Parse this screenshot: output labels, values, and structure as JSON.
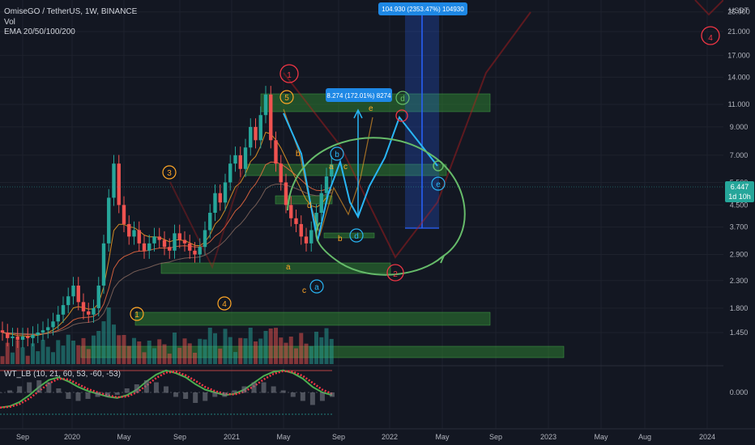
{
  "legend": {
    "symbol": "OmiseGO / TetherUS, 1W, BINANCE",
    "vol": "Vol",
    "ema": "EMA 20/50/100/200",
    "oscillator": "WT_LB (10, 21, 60, 53, -60, -53)"
  },
  "price_axis": {
    "currency": "USDT",
    "last_price": "6.447",
    "countdown": "1d 10h"
  },
  "annotations": {
    "measure_small": "8.274 (172.01%) 8274",
    "measure_big": "104.930 (2353.47%) 104930"
  },
  "colors": {
    "background": "#131722",
    "up": "#26a69a",
    "down": "#ef5350",
    "zone": "#2e7d32",
    "projection": "#29b6f6",
    "circle": "#66bb6a",
    "wave_orange": "#ffa726",
    "wave_red": "#f23645",
    "measure": "#2962ff"
  },
  "chart_data": {
    "type": "candlestick",
    "y_scale": "log",
    "x_tick_labels": [
      "Sep",
      "2020",
      "May",
      "Sep",
      "2021",
      "May",
      "Sep",
      "2022",
      "May",
      "Sep",
      "2023",
      "May",
      "Aug",
      "2024"
    ],
    "y_tick_labels": [
      "25.000",
      "21.000",
      "17.000",
      "14.000",
      "11.000",
      "9.000",
      "7.000",
      "5.500",
      "4.500",
      "3.700",
      "2.900",
      "2.300",
      "1.800",
      "1.450",
      "0.000"
    ],
    "osc_tick_label": "0.000",
    "price_series": {
      "name": "OMG/USDT weekly close (approx.)",
      "values": [
        1.45,
        1.38,
        1.4,
        1.36,
        1.4,
        1.38,
        1.42,
        1.45,
        1.48,
        1.52,
        1.6,
        1.7,
        1.85,
        2.0,
        2.2,
        1.9,
        1.75,
        1.7,
        1.8,
        2.2,
        3.2,
        4.8,
        6.5,
        4.5,
        3.8,
        3.4,
        3.6,
        3.2,
        3.0,
        3.2,
        3.4,
        3.3,
        3.1,
        3.0,
        3.5,
        3.3,
        3.2,
        3.0,
        2.9,
        3.1,
        3.6,
        4.2,
        5.0,
        4.6,
        5.5,
        6.5,
        7.0,
        6.2,
        7.5,
        9.0,
        8.0,
        10.0,
        12.0,
        8.0,
        6.5,
        5.5,
        4.5,
        4.0,
        3.8,
        3.4,
        3.2,
        3.6,
        4.2,
        5.0,
        5.8,
        6.45
      ]
    },
    "levels": {
      "three": 6.45,
      "four": 2.55,
      "five": 13.0,
      "wave_a": 2.95,
      "wave_b": 4.3,
      "wave_c": 8.1,
      "wave_d": 13.0,
      "wave_e": 6.9,
      "two": 2.9
    },
    "wave_labels": {
      "impulse": [
        "1",
        "3",
        "4",
        "5"
      ],
      "higher_degree": [
        "1",
        "2",
        "4"
      ],
      "abc": [
        "a",
        "b",
        "c",
        "a",
        "b",
        "c",
        "d",
        "e"
      ]
    },
    "oscillator": {
      "name": "WT_LB",
      "params": "10, 21, 60, 53, -60, -53",
      "values": [
        -55,
        -50,
        -35,
        -10,
        20,
        45,
        55,
        40,
        20,
        5,
        -5,
        -15,
        -20,
        -10,
        10,
        40,
        65,
        80,
        70,
        55,
        30,
        10,
        0,
        -10,
        -5,
        10,
        35,
        60,
        75,
        80,
        70,
        50,
        20,
        0,
        -10
      ]
    }
  }
}
